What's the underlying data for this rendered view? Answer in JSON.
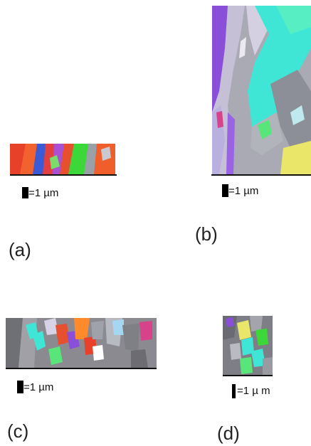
{
  "panels": [
    {
      "id": "a",
      "label": "(a)",
      "scale_text": "=1 µm"
    },
    {
      "id": "b",
      "label": "(b)",
      "scale_text": "=1 µm"
    },
    {
      "id": "c",
      "label": "(c)",
      "scale_text": "=1 µm"
    },
    {
      "id": "d",
      "label": "(d)",
      "scale_text": "=1 µ m"
    }
  ],
  "colors": {
    "background": "#ffffff",
    "grain_red": "#e8412a",
    "grain_green": "#3cd83a",
    "grain_cyan": "#3fe6d6",
    "grain_violet": "#8a4fd8",
    "grain_gray": "#9a9aa2",
    "grain_yellow": "#e9e66a"
  }
}
